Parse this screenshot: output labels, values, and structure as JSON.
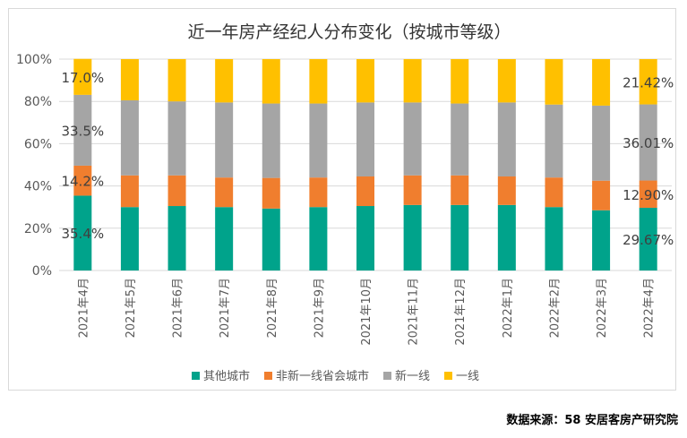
{
  "source_note": "数据来源：58 安居客房产研究院",
  "chart_data": {
    "type": "bar",
    "stacked": true,
    "title": "近一年房产经纪人分布变化（按城市等级）",
    "xlabel": "",
    "ylabel": "",
    "ylim": [
      0,
      100
    ],
    "yticks": [
      "0%",
      "20%",
      "40%",
      "60%",
      "80%",
      "100%"
    ],
    "grid": true,
    "legend_position": "bottom",
    "categories": [
      "2021年4月",
      "2021年5月",
      "2021年6月",
      "2021年7月",
      "2021年8月",
      "2021年9月",
      "2021年10月",
      "2021年11月",
      "2021年12月",
      "2022年1月",
      "2022年2月",
      "2022年3月",
      "2022年4月"
    ],
    "series": [
      {
        "name": "其他城市",
        "color": "#00a38b",
        "values": [
          35.4,
          30.0,
          30.5,
          30.0,
          29.3,
          30.0,
          30.5,
          31.0,
          31.0,
          31.0,
          30.0,
          28.5,
          29.67
        ]
      },
      {
        "name": "非新一线省会城市",
        "color": "#f07e2e",
        "values": [
          14.2,
          15.0,
          14.5,
          14.0,
          14.5,
          14.0,
          14.0,
          14.0,
          14.0,
          13.5,
          14.0,
          14.0,
          12.9
        ]
      },
      {
        "name": "新一线",
        "color": "#a5a5a5",
        "values": [
          33.5,
          35.5,
          35.0,
          35.5,
          35.2,
          35.0,
          35.0,
          34.5,
          34.0,
          35.0,
          34.5,
          35.5,
          36.01
        ]
      },
      {
        "name": "一线",
        "color": "#ffc000",
        "values": [
          17.0,
          19.5,
          20.0,
          20.5,
          21.0,
          21.0,
          20.5,
          20.5,
          21.0,
          20.5,
          21.5,
          22.0,
          21.42
        ]
      }
    ],
    "data_labels": [
      {
        "category": 0,
        "series": 3,
        "text": "17.0%"
      },
      {
        "category": 0,
        "series": 2,
        "text": "33.5%"
      },
      {
        "category": 0,
        "series": 1,
        "text": "14.2%"
      },
      {
        "category": 0,
        "series": 0,
        "text": "35.4%"
      },
      {
        "category": 12,
        "series": 3,
        "text": "21.42%"
      },
      {
        "category": 12,
        "series": 2,
        "text": "36.01%"
      },
      {
        "category": 12,
        "series": 1,
        "text": "12.90%"
      },
      {
        "category": 12,
        "series": 0,
        "text": "29.67%"
      }
    ]
  }
}
